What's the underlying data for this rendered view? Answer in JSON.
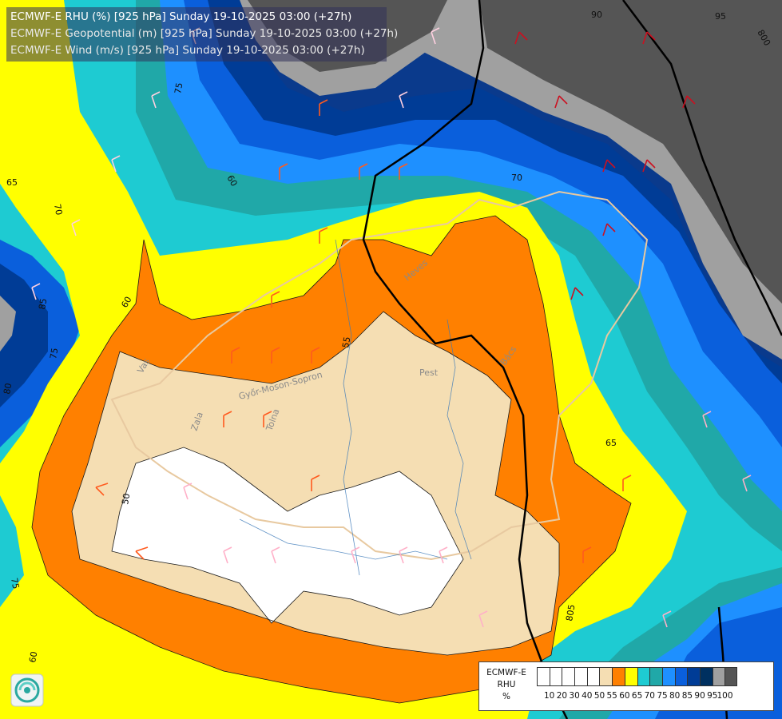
{
  "header": {
    "line1": "ECMWF-E RHU (%) [925 hPa] Sunday 19-10-2025 03:00 (+27h)",
    "line2": "ECMWF-E Geopotential (m) [925 hPa] Sunday 19-10-2025 03:00 (+27h)",
    "line3": "ECMWF-E Wind (m/s) [925 hPa] Sunday 19-10-2025 03:00 (+27h)"
  },
  "legend": {
    "line1": "ECMWF-E",
    "line2": "RHU",
    "line3": "%",
    "colors": [
      "#ffffff",
      "#ffffff",
      "#ffffff",
      "#ffffff",
      "#ffffff",
      "#f5deb3",
      "#ff8000",
      "#ffff00",
      "#1ecbd2",
      "#20a8a8",
      "#1e90ff",
      "#0a5fdc",
      "#003c96",
      "#003060",
      "#a0a0a0",
      "#555555"
    ],
    "ticks": [
      "10",
      "20",
      "30",
      "40",
      "50",
      "55",
      "60",
      "65",
      "70",
      "75",
      "80",
      "85",
      "90",
      "95",
      "100"
    ]
  },
  "places": {
    "pest": "Pest",
    "bacs": "Bács",
    "heves": "Heves",
    "vas": "Vas",
    "zala": "Zala",
    "tolna": "Tolna",
    "somogy": "Győr-Moson-Sopron"
  },
  "contour_labels": {
    "c50": "50",
    "c55": "55",
    "c60": "60",
    "c60b": "60",
    "c65": "65",
    "c65b": "65",
    "c70": "70",
    "c70b": "70",
    "c75": "75",
    "c75b": "75",
    "c75c": "75",
    "c80": "80",
    "c85": "85",
    "c90": "90",
    "c95": "95",
    "c60c": "60"
  },
  "geopotential_labels": {
    "g800": "800",
    "g805": "805"
  },
  "colors": {
    "rhu_50": "#ffffff",
    "rhu_55": "#f5deb3",
    "rhu_60": "#ff8000",
    "rhu_65": "#ffff00",
    "rhu_70": "#1ecbd2",
    "rhu_75": "#20a8a8",
    "rhu_80": "#1e90ff",
    "rhu_85": "#0a5fdc",
    "rhu_90": "#003c96",
    "rhu_95": "#a0a0a0",
    "rhu_100": "#555555"
  }
}
